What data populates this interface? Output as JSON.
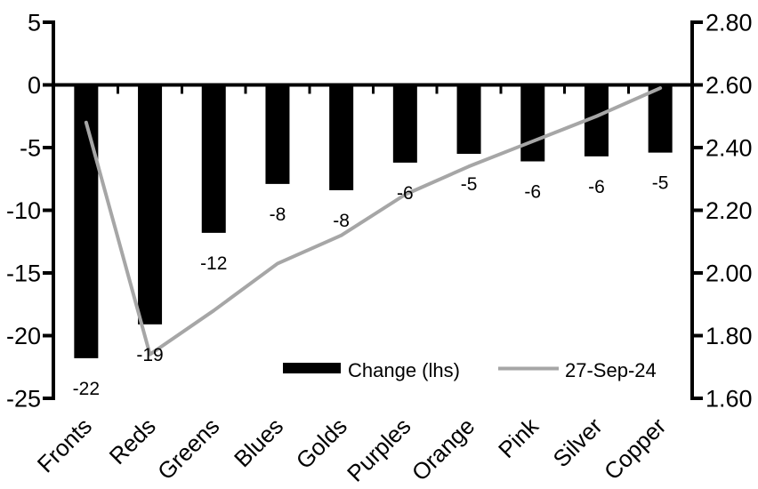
{
  "chart_data": {
    "type": "combo-bar-line",
    "title": "",
    "xlabel": "",
    "ylabel_left": "",
    "ylabel_right": "",
    "grid": "off",
    "legend_position": "inside-bottom",
    "background_color": "#ffffff",
    "axis_color": "#000000",
    "categories": [
      "Fronts",
      "Reds",
      "Greens",
      "Blues",
      "Golds",
      "Purples",
      "Orange",
      "Pink",
      "Silver",
      "Copper"
    ],
    "series": [
      {
        "name": "Change (lhs)",
        "type": "bar",
        "axis": "left",
        "color": "#000000",
        "values": [
          -22,
          -19,
          -12,
          -8,
          -8,
          -6,
          -5,
          -6,
          -6,
          -5
        ],
        "values_precise": [
          -21.8,
          -19.1,
          -11.8,
          -7.9,
          -8.4,
          -6.2,
          -5.5,
          -6.1,
          -5.7,
          -5.4
        ],
        "data_labels": [
          "-22",
          "-19",
          "-12",
          "-8",
          "-8",
          "-6",
          "-5",
          "-6",
          "-6",
          "-5"
        ]
      },
      {
        "name": "27-Sep-24",
        "type": "line",
        "axis": "right",
        "color": "#a6a6a6",
        "values": [
          2.48,
          1.74,
          1.88,
          2.03,
          2.12,
          2.25,
          2.34,
          2.42,
          2.5,
          2.59
        ]
      }
    ],
    "left_axis": {
      "min": -25,
      "max": 5,
      "step": 5,
      "tick_values": [
        5,
        0,
        -5,
        -10,
        -15,
        -20,
        -25
      ],
      "tick_labels": [
        "5",
        "0",
        "-5",
        "-10",
        "-15",
        "-20",
        "-25"
      ]
    },
    "right_axis": {
      "min": 1.6,
      "max": 2.8,
      "step": 0.2,
      "tick_values": [
        2.8,
        2.6,
        2.4,
        2.2,
        2.0,
        1.8,
        1.6
      ],
      "tick_labels": [
        "2.80",
        "2.60",
        "2.40",
        "2.20",
        "2.00",
        "1.80",
        "1.60"
      ]
    },
    "legend": [
      {
        "label": "Change (lhs)",
        "swatch": "bar",
        "color": "#000000"
      },
      {
        "label": "27-Sep-24",
        "swatch": "line",
        "color": "#a6a6a6"
      }
    ]
  }
}
